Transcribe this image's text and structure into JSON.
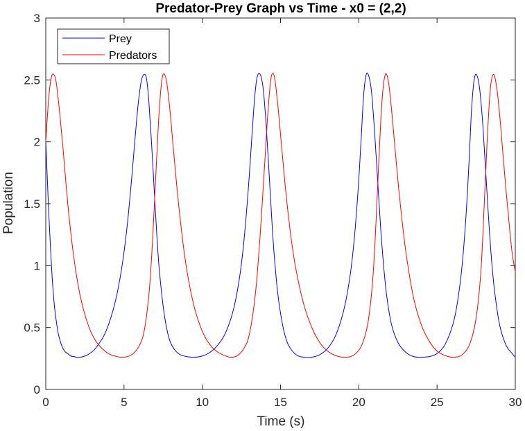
{
  "chart_data": {
    "type": "line",
    "title": "Predator-Prey Graph vs Time - x0 = (2,2)",
    "xlabel": "Time (s)",
    "ylabel": "Population",
    "xlim": [
      0,
      30
    ],
    "ylim": [
      0,
      3
    ],
    "xticks": [
      0,
      5,
      10,
      15,
      20,
      25,
      30
    ],
    "yticks": [
      0,
      0.5,
      1,
      1.5,
      2,
      2.5,
      3
    ],
    "xtick_labels": [
      "0",
      "5",
      "10",
      "15",
      "20",
      "25",
      "30"
    ],
    "ytick_labels": [
      "0",
      "0.5",
      "1",
      "1.5",
      "2",
      "2.5",
      "3"
    ],
    "grid": false,
    "legend_position": "top-left",
    "series": [
      {
        "name": "Prey",
        "color": "#0000ff",
        "x": [
          0,
          0.1,
          0.2,
          0.3,
          0.4,
          0.5,
          0.6,
          0.8,
          1.0,
          1.2,
          1.4,
          1.6,
          1.8,
          2.0,
          2.2,
          2.5,
          2.8,
          3.1,
          3.4,
          3.7,
          4.0,
          4.3,
          4.6,
          4.9,
          5.2,
          5.5,
          5.7,
          5.9,
          6.1,
          6.3,
          6.45,
          6.6,
          6.8,
          7.0,
          7.2,
          7.4,
          7.6,
          7.8,
          8.0,
          8.3,
          8.6,
          9.0,
          9.5,
          10.0,
          10.5,
          11.0,
          11.5,
          12.0,
          12.4,
          12.7,
          13.0,
          13.2,
          13.35,
          13.5,
          13.7,
          13.9,
          14.1,
          14.3,
          14.5,
          14.7,
          14.9,
          15.2,
          15.5,
          16.0,
          16.5,
          17.0,
          17.5,
          18.0,
          18.5,
          19.0,
          19.4,
          19.7,
          19.95,
          20.15,
          20.3,
          20.45,
          20.6,
          20.8,
          21.0,
          21.2,
          21.4,
          21.6,
          21.8,
          22.1,
          22.5,
          23.0,
          23.5,
          24.0,
          24.5,
          25.0,
          25.5,
          26.0,
          26.3,
          26.6,
          26.85,
          27.05,
          27.2,
          27.35,
          27.5,
          27.7,
          27.9,
          28.1,
          28.3,
          28.5,
          28.7,
          29.0,
          29.4,
          29.8,
          30.0
        ],
        "values": [
          2.0,
          1.7,
          1.4,
          1.15,
          0.92,
          0.75,
          0.62,
          0.45,
          0.36,
          0.31,
          0.29,
          0.27,
          0.265,
          0.26,
          0.26,
          0.27,
          0.29,
          0.32,
          0.37,
          0.43,
          0.52,
          0.64,
          0.8,
          1.02,
          1.32,
          1.72,
          2.02,
          2.3,
          2.49,
          2.545,
          2.5,
          2.3,
          1.9,
          1.45,
          1.05,
          0.78,
          0.58,
          0.45,
          0.37,
          0.31,
          0.28,
          0.265,
          0.26,
          0.27,
          0.3,
          0.36,
          0.46,
          0.65,
          0.92,
          1.25,
          1.72,
          2.1,
          2.36,
          2.52,
          2.545,
          2.42,
          2.1,
          1.68,
          1.25,
          0.93,
          0.7,
          0.48,
          0.36,
          0.28,
          0.26,
          0.26,
          0.28,
          0.33,
          0.43,
          0.62,
          0.88,
          1.2,
          1.6,
          2.02,
          2.36,
          2.53,
          2.545,
          2.42,
          2.1,
          1.7,
          1.3,
          0.98,
          0.74,
          0.52,
          0.38,
          0.3,
          0.265,
          0.26,
          0.265,
          0.29,
          0.36,
          0.52,
          0.7,
          1.0,
          1.4,
          1.85,
          2.25,
          2.48,
          2.545,
          2.45,
          2.18,
          1.78,
          1.37,
          1.02,
          0.77,
          0.52,
          0.36,
          0.29,
          0.26
        ]
      },
      {
        "name": "Predators",
        "color": "#ff0000",
        "x": [
          0,
          0.1,
          0.2,
          0.3,
          0.4,
          0.5,
          0.6,
          0.7,
          0.9,
          1.1,
          1.3,
          1.5,
          1.8,
          2.1,
          2.4,
          2.8,
          3.2,
          3.6,
          4.0,
          4.4,
          4.8,
          5.2,
          5.6,
          6.0,
          6.3,
          6.6,
          6.8,
          7.0,
          7.2,
          7.35,
          7.5,
          7.7,
          7.9,
          8.1,
          8.3,
          8.5,
          8.8,
          9.1,
          9.5,
          10.0,
          10.5,
          11.0,
          11.5,
          11.8,
          12.2,
          12.6,
          13.0,
          13.4,
          13.7,
          14.0,
          14.2,
          14.4,
          14.6,
          14.8,
          15.0,
          15.2,
          15.4,
          15.7,
          16.0,
          16.5,
          17.0,
          17.5,
          18.0,
          18.6,
          19.2,
          19.7,
          20.2,
          20.6,
          20.9,
          21.1,
          21.3,
          21.5,
          21.7,
          21.9,
          22.1,
          22.3,
          22.6,
          23.0,
          23.5,
          24.0,
          24.5,
          25.0,
          25.6,
          26.1,
          26.6,
          27.1,
          27.5,
          27.8,
          28.0,
          28.2,
          28.4,
          28.6,
          28.8,
          29.0,
          29.2,
          29.4,
          29.6,
          29.8,
          30.0
        ],
        "values": [
          2.0,
          2.2,
          2.37,
          2.48,
          2.54,
          2.545,
          2.52,
          2.45,
          2.22,
          1.95,
          1.65,
          1.38,
          1.06,
          0.82,
          0.65,
          0.49,
          0.39,
          0.33,
          0.29,
          0.27,
          0.26,
          0.265,
          0.29,
          0.36,
          0.48,
          0.78,
          1.15,
          1.65,
          2.15,
          2.42,
          2.545,
          2.5,
          2.3,
          2.02,
          1.74,
          1.48,
          1.15,
          0.9,
          0.66,
          0.47,
          0.36,
          0.3,
          0.27,
          0.26,
          0.27,
          0.32,
          0.44,
          0.78,
          1.25,
          1.85,
          2.25,
          2.52,
          2.53,
          2.33,
          2.06,
          1.78,
          1.52,
          1.2,
          0.96,
          0.68,
          0.5,
          0.38,
          0.31,
          0.27,
          0.26,
          0.28,
          0.36,
          0.55,
          0.9,
          1.35,
          1.9,
          2.36,
          2.545,
          2.48,
          2.25,
          1.97,
          1.56,
          1.12,
          0.74,
          0.52,
          0.39,
          0.31,
          0.27,
          0.26,
          0.28,
          0.37,
          0.58,
          0.95,
          1.45,
          2.0,
          2.42,
          2.545,
          2.45,
          2.22,
          1.92,
          1.62,
          1.35,
          1.1,
          0.95
        ]
      }
    ]
  }
}
